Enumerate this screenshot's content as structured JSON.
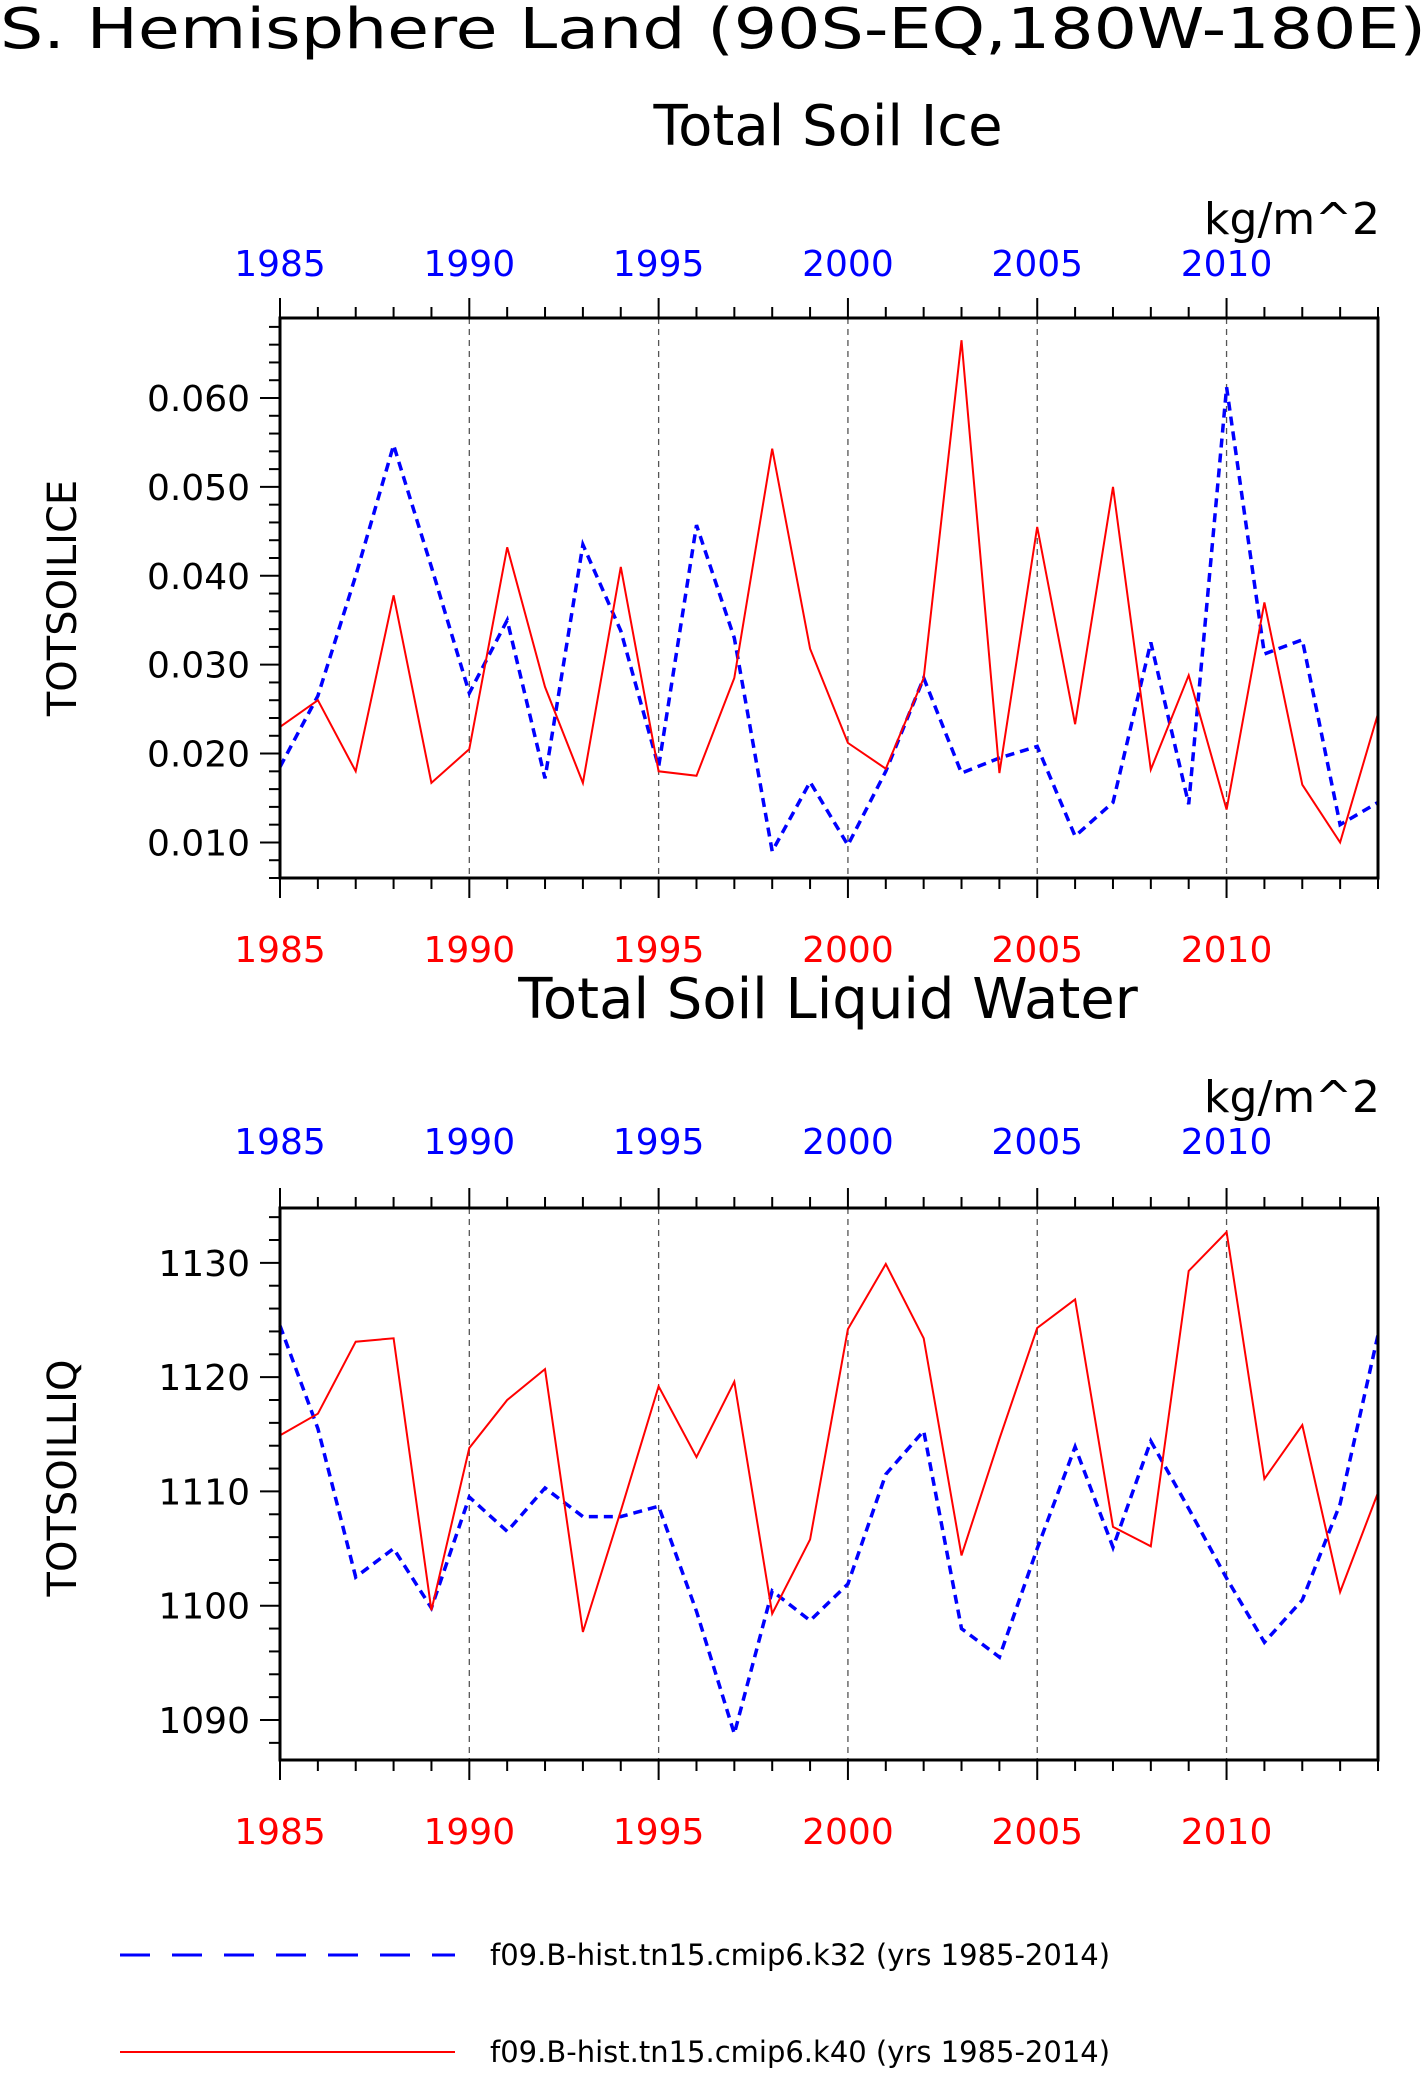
{
  "figure": {
    "title": "S. Hemisphere Land (90S-EQ,180W-180E)",
    "colors": {
      "series_a": "#0000ff",
      "series_b": "#ff0000",
      "axis": "#000000",
      "grid": "#555555"
    }
  },
  "legend": {
    "entries": [
      {
        "label": "f09.B-hist.tn15.cmip6.k32 (yrs 1985-2014)",
        "color": "#0000ff",
        "style": "dashed"
      },
      {
        "label": "f09.B-hist.tn15.cmip6.k40 (yrs 1985-2014)",
        "color": "#ff0000",
        "style": "solid"
      }
    ]
  },
  "chart_data": [
    {
      "type": "line",
      "title": "Total Soil Ice",
      "units": "kg/m^2",
      "ylabel": "TOTSOILICE",
      "xlim": [
        1985,
        2014
      ],
      "ylim": [
        0.006,
        0.069
      ],
      "yticks": [
        0.01,
        0.02,
        0.03,
        0.04,
        0.05,
        0.06
      ],
      "ytick_labels": [
        "0.010",
        "0.020",
        "0.030",
        "0.040",
        "0.050",
        "0.060"
      ],
      "xticks": [
        1985,
        1990,
        1995,
        2000,
        2005,
        2010
      ],
      "xtick_labels": [
        "1985",
        "1990",
        "1995",
        "2000",
        "2005",
        "2010"
      ],
      "grid": "vertical dashed at major x ticks",
      "x": [
        1985,
        1986,
        1987,
        1988,
        1989,
        1990,
        1991,
        1992,
        1993,
        1994,
        1995,
        1996,
        1997,
        1998,
        1999,
        2000,
        2001,
        2002,
        2003,
        2004,
        2005,
        2006,
        2007,
        2008,
        2009,
        2010,
        2011,
        2012,
        2013,
        2014
      ],
      "series": [
        {
          "values": [
            0.0185,
            0.0265,
            0.04,
            0.0547,
            0.041,
            0.0268,
            0.035,
            0.0172,
            0.0435,
            0.0338,
            0.0185,
            0.0457,
            0.033,
            0.009,
            0.0168,
            0.0097,
            0.018,
            0.0285,
            0.0178,
            0.0195,
            0.0208,
            0.0107,
            0.0145,
            0.0325,
            0.0143,
            0.0612,
            0.0312,
            0.0328,
            0.012,
            0.0145
          ]
        },
        {
          "values": [
            0.023,
            0.026,
            0.018,
            0.0378,
            0.0167,
            0.0205,
            0.0432,
            0.0275,
            0.0167,
            0.041,
            0.018,
            0.0175,
            0.0285,
            0.0543,
            0.0318,
            0.0212,
            0.0183,
            0.0285,
            0.0665,
            0.0178,
            0.0455,
            0.0233,
            0.05,
            0.0182,
            0.0288,
            0.0137,
            0.037,
            0.0165,
            0.01,
            0.0245
          ]
        }
      ]
    },
    {
      "type": "line",
      "title": "Total Soil Liquid Water",
      "units": "kg/m^2",
      "ylabel": "TOTSOILLIQ",
      "xlim": [
        1985,
        2014
      ],
      "ylim": [
        1086.5,
        1134.8
      ],
      "yticks": [
        1090,
        1100,
        1110,
        1120,
        1130
      ],
      "ytick_labels": [
        "1090",
        "1100",
        "1110",
        "1120",
        "1130"
      ],
      "xticks": [
        1985,
        1990,
        1995,
        2000,
        2005,
        2010
      ],
      "xtick_labels": [
        "1985",
        "1990",
        "1995",
        "2000",
        "2005",
        "2010"
      ],
      "grid": "vertical dashed at major x ticks",
      "x": [
        1985,
        1986,
        1987,
        1988,
        1989,
        1990,
        1991,
        1992,
        1993,
        1994,
        1995,
        1996,
        1997,
        1998,
        1999,
        2000,
        2001,
        2002,
        2003,
        2004,
        2005,
        2006,
        2007,
        2008,
        2009,
        2010,
        2011,
        2012,
        2013,
        2014
      ],
      "series": [
        {
          "values": [
            1124.5,
            1115.5,
            1102.5,
            1105.0,
            1099.8,
            1109.5,
            1106.5,
            1110.3,
            1107.8,
            1107.8,
            1108.7,
            1099.5,
            1088.8,
            1101.3,
            1098.7,
            1101.9,
            1111.5,
            1115.3,
            1098.0,
            1095.5,
            1105.0,
            1113.9,
            1105.1,
            1114.4,
            1108.5,
            1102.4,
            1096.8,
            1100.5,
            1108.9,
            1123.7
          ]
        },
        {
          "values": [
            1114.9,
            1116.8,
            1123.1,
            1123.4,
            1099.6,
            1113.8,
            1118.0,
            1120.7,
            1097.7,
            1108.3,
            1119.2,
            1113.0,
            1119.6,
            1099.3,
            1105.8,
            1124.2,
            1129.9,
            1123.4,
            1104.4,
            1114.6,
            1124.3,
            1126.8,
            1106.9,
            1105.2,
            1129.3,
            1132.7,
            1111.1,
            1115.8,
            1101.2,
            1109.9
          ]
        }
      ]
    }
  ]
}
